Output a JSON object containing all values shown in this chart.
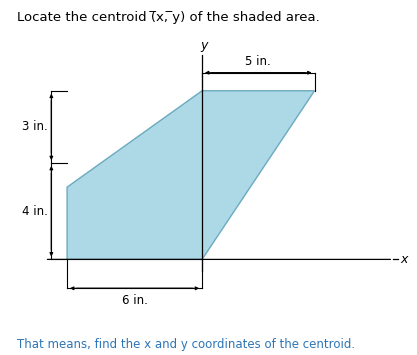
{
  "title": "Locate the centroid (̅x, ̅y) of the shaded area.",
  "bottom_text": "That means, find the x and y coordinates of the centroid.",
  "shape_vertices": [
    [
      -6,
      0
    ],
    [
      -6,
      3
    ],
    [
      0,
      7
    ],
    [
      5,
      7
    ],
    [
      0,
      0
    ]
  ],
  "shape_color": "#add8e6",
  "shape_edge_color": "#6aaabf",
  "dim_5_label": "5 in.",
  "dim_3_label": "3 in.",
  "dim_4_label": "4 in.",
  "dim_6_label": "6 in.",
  "title_color": "#000000",
  "bottom_text_color": "#2e75b6",
  "axis_label_x": "x",
  "axis_label_y": "y",
  "xlim": [
    -7.5,
    9.0
  ],
  "ylim": [
    -2.2,
    9.0
  ],
  "figsize": [
    4.17,
    3.55
  ],
  "dpi": 100
}
